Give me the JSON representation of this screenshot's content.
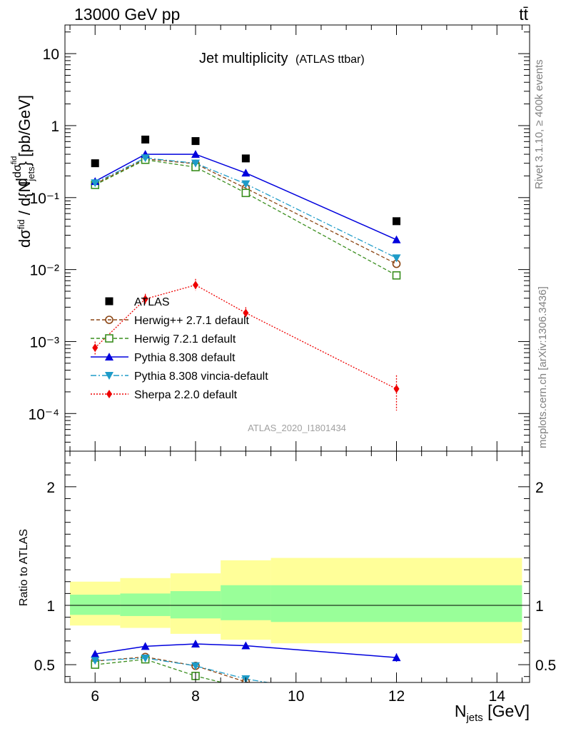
{
  "header": {
    "process": "13000 GeV pp",
    "final_state": "tt̄",
    "side_rivet": "Rivet 3.1.10, ≥ 400k events",
    "side_mcplots": "mcplots.cern.ch [arXiv:1306.3436]"
  },
  "chart_data": [
    {
      "type": "line",
      "panel": "main",
      "title": "Jet multiplicity",
      "subtitle": "(ATLAS ttbar)",
      "watermark": "ATLAS_2020_I1801434",
      "ylabel": "dσfid / d{Njets} [pb/GeV]",
      "yscale": "log",
      "xlim": [
        5.4,
        14.65
      ],
      "ylim": [
        3e-05,
        25
      ],
      "x_ticks": [
        "6",
        "8",
        "10",
        "12",
        "14"
      ],
      "y_ticks": [
        "10⁻⁴",
        "10⁻³",
        "10⁻²",
        "10⁻¹",
        "1",
        "10"
      ],
      "grid": false,
      "legend_position": "lower-left",
      "series": [
        {
          "name": "ATLAS",
          "color": "#000000",
          "marker": "square-filled",
          "line": "none",
          "x": [
            6,
            7,
            8,
            9,
            12
          ],
          "y": [
            0.3,
            0.64,
            0.61,
            0.35,
            0.047
          ]
        },
        {
          "name": "Herwig++ 2.7.1 default",
          "color": "#8b4513",
          "marker": "circle-open",
          "line": "dashed",
          "x": [
            6,
            7,
            8,
            9,
            12
          ],
          "y": [
            0.155,
            0.345,
            0.295,
            0.135,
            0.012
          ]
        },
        {
          "name": "Herwig 7.2.1 default",
          "color": "#3a8e1e",
          "marker": "square-open",
          "line": "dashed",
          "x": [
            6,
            7,
            8,
            9,
            12
          ],
          "y": [
            0.15,
            0.335,
            0.265,
            0.116,
            0.0083
          ]
        },
        {
          "name": "Pythia 8.308 default",
          "color": "#0000dd",
          "marker": "triangle-up",
          "line": "solid",
          "x": [
            6,
            7,
            8,
            9,
            12
          ],
          "y": [
            0.168,
            0.4,
            0.4,
            0.22,
            0.026
          ]
        },
        {
          "name": "Pythia 8.308 vincia-default",
          "color": "#1e9bc8",
          "marker": "triangle-down",
          "line": "dashdot",
          "x": [
            6,
            7,
            8,
            9,
            12
          ],
          "y": [
            0.16,
            0.355,
            0.3,
            0.155,
            0.0145
          ]
        },
        {
          "name": "Sherpa 2.2.0 default",
          "color": "#ee0000",
          "marker": "diamond",
          "line": "dotted",
          "x": [
            6,
            7,
            8,
            9,
            12
          ],
          "y": [
            0.00082,
            0.0039,
            0.0061,
            0.0025,
            0.00022
          ],
          "y_err_low": [
            0.00065,
            0.0033,
            0.0051,
            0.0021,
            0.00011
          ],
          "y_err_high": [
            0.001,
            0.0046,
            0.0074,
            0.003,
            0.00034
          ]
        }
      ]
    },
    {
      "type": "line",
      "panel": "ratio",
      "ylabel": "Ratio to ATLAS",
      "xlabel": "Njets [GeV]",
      "xlim": [
        5.4,
        14.65
      ],
      "ylim": [
        0.35,
        2.3
      ],
      "x_ticks": [
        "6",
        "8",
        "10",
        "12",
        "14"
      ],
      "y_ticks": [
        "0.5",
        "1",
        "2"
      ],
      "reference_line": 1,
      "bands": [
        {
          "name": "stat",
          "color": "#99ff99",
          "bins": [
            [
              5.5,
              6.5,
              0.92,
              1.09
            ],
            [
              6.5,
              7.5,
              0.91,
              1.1
            ],
            [
              7.5,
              8.5,
              0.89,
              1.12
            ],
            [
              8.5,
              9.5,
              0.875,
              1.17
            ],
            [
              9.5,
              14.5,
              0.86,
              1.17
            ]
          ]
        },
        {
          "name": "total",
          "color": "#ffff99",
          "bins": [
            [
              5.5,
              6.5,
              0.83,
              1.2
            ],
            [
              6.5,
              7.5,
              0.81,
              1.23
            ],
            [
              7.5,
              8.5,
              0.76,
              1.27
            ],
            [
              8.5,
              9.5,
              0.71,
              1.38
            ],
            [
              9.5,
              14.5,
              0.68,
              1.4
            ]
          ]
        }
      ],
      "series": [
        {
          "name": "Herwig++ 2.7.1 default",
          "color": "#8b4513",
          "marker": "circle-open",
          "line": "dashed",
          "x": [
            6,
            7,
            8,
            9,
            10
          ],
          "y": [
            0.53,
            0.565,
            0.49,
            0.355,
            0.26
          ]
        },
        {
          "name": "Herwig 7.2.1 default",
          "color": "#3a8e1e",
          "marker": "square-open",
          "line": "dashed",
          "x": [
            6,
            7,
            8,
            9
          ],
          "y": [
            0.5,
            0.545,
            0.405,
            0.3
          ]
        },
        {
          "name": "Pythia 8.308 default",
          "color": "#0000dd",
          "marker": "triangle-up",
          "line": "solid",
          "x": [
            6,
            7,
            8,
            9,
            12
          ],
          "y": [
            0.59,
            0.655,
            0.675,
            0.66,
            0.56
          ],
          "y_err": [
            0.025,
            0.02,
            0.018,
            0.025,
            0.035
          ]
        },
        {
          "name": "Pythia 8.308 vincia-default",
          "color": "#1e9bc8",
          "marker": "triangle-down",
          "line": "dashdot",
          "x": [
            6,
            7,
            8,
            9,
            10
          ],
          "y": [
            0.535,
            0.555,
            0.49,
            0.38,
            0.31
          ]
        }
      ]
    }
  ]
}
